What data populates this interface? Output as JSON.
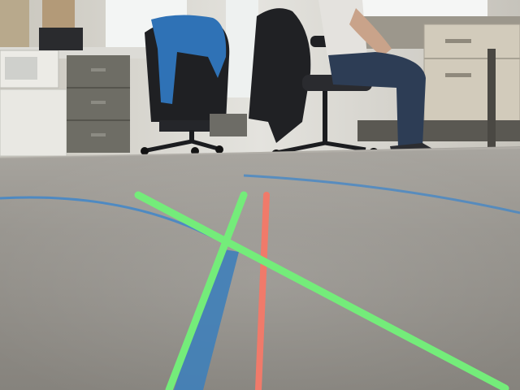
{
  "scene": {
    "description_colors": {
      "floor": "#908d87",
      "floor_far": "#a3a09a",
      "wall": "#d9d8d2",
      "window": "#f2f4f3",
      "cabinet": "#6b6a62",
      "desk_beige": "#cfc8b8",
      "microwave": "#ecebe6",
      "chair_black": "#1e1f22",
      "jacket_blue": "#2f6fb0",
      "jeans": "#2b3b52",
      "shirt": "#e6e4e0",
      "tape_blue": "#3f86c9",
      "overlay_green": "#74ec7a",
      "overlay_red": "#f07a6a"
    }
  }
}
